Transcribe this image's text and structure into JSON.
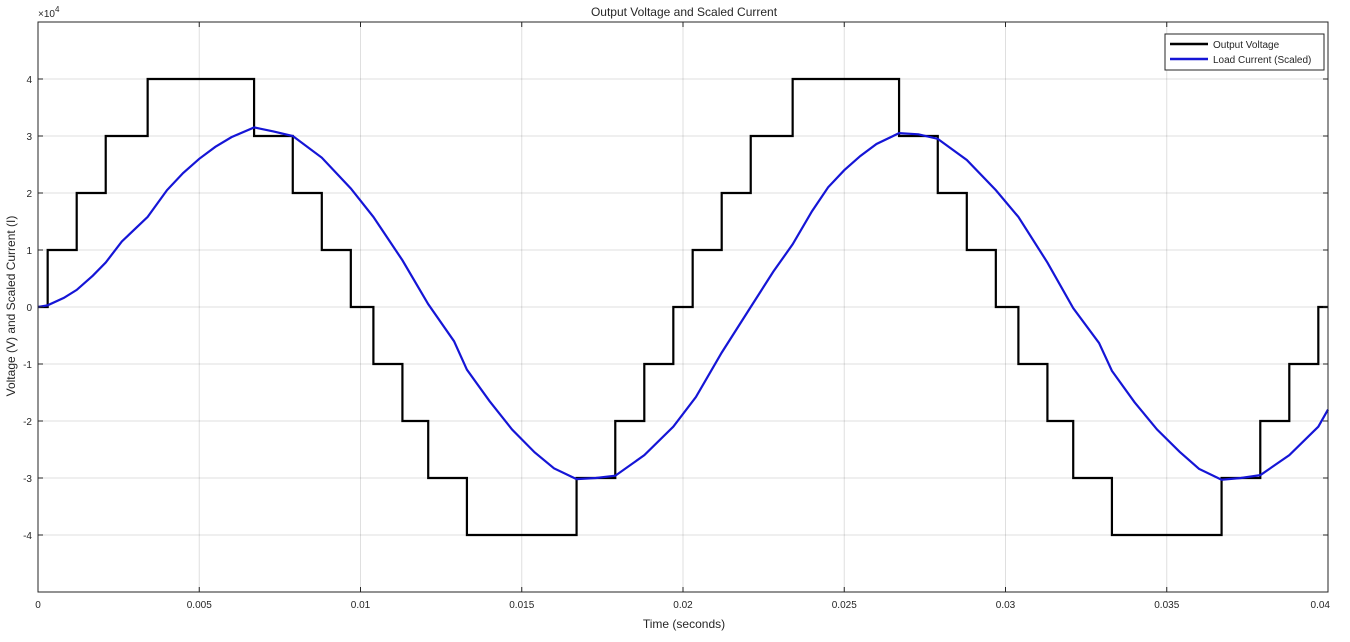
{
  "chart_data": {
    "type": "line",
    "title": "Output Voltage and Scaled Current",
    "xlabel": "Time (seconds)",
    "ylabel": "Voltage (V) and Scaled Current (I)",
    "y_exponent_label": "×10",
    "y_exponent_power": "4",
    "xlim": [
      0,
      0.04
    ],
    "ylim": [
      -50000,
      50000
    ],
    "grid": true,
    "legend_position": "top-right",
    "x_ticks": [
      0,
      0.005,
      0.01,
      0.015,
      0.02,
      0.025,
      0.03,
      0.035,
      0.04
    ],
    "x_tick_labels": [
      "0",
      "0.005",
      "0.01",
      "0.015",
      "0.02",
      "0.025",
      "0.03",
      "0.035",
      "0.04"
    ],
    "y_ticks": [
      -40000,
      -30000,
      -20000,
      -10000,
      0,
      10000,
      20000,
      30000,
      40000
    ],
    "y_tick_labels": [
      "-4",
      "-3",
      "-2",
      "-1",
      "0",
      "1",
      "2",
      "3",
      "4"
    ],
    "series": [
      {
        "name": "Output Voltage",
        "color": "#000000",
        "style": "step",
        "x": [
          0,
          0.0003,
          0.0003,
          0.0012,
          0.0012,
          0.0021,
          0.0021,
          0.0034,
          0.0034,
          0.0067,
          0.0067,
          0.0079,
          0.0079,
          0.0088,
          0.0088,
          0.0097,
          0.0097,
          0.0104,
          0.0104,
          0.0113,
          0.0113,
          0.0121,
          0.0121,
          0.0133,
          0.0133,
          0.0167,
          0.0167,
          0.0179,
          0.0179,
          0.0188,
          0.0188,
          0.0197,
          0.0197,
          0.0203,
          0.0203,
          0.0212,
          0.0212,
          0.0221,
          0.0221,
          0.0234,
          0.0234,
          0.0267,
          0.0267,
          0.0279,
          0.0279,
          0.0288,
          0.0288,
          0.0297,
          0.0297,
          0.0304,
          0.0304,
          0.0313,
          0.0313,
          0.0321,
          0.0321,
          0.0333,
          0.0333,
          0.0367,
          0.0367,
          0.0379,
          0.0379,
          0.0388,
          0.0388,
          0.0397,
          0.0397,
          0.04
        ],
        "y": [
          0,
          0,
          10000,
          10000,
          20000,
          20000,
          30000,
          30000,
          40000,
          40000,
          30000,
          30000,
          20000,
          20000,
          10000,
          10000,
          0,
          0,
          -10000,
          -10000,
          -20000,
          -20000,
          -30000,
          -30000,
          -40000,
          -40000,
          -30000,
          -30000,
          -20000,
          -20000,
          -10000,
          -10000,
          0,
          0,
          10000,
          10000,
          20000,
          20000,
          30000,
          30000,
          40000,
          40000,
          30000,
          30000,
          20000,
          20000,
          10000,
          10000,
          0,
          0,
          -10000,
          -10000,
          -20000,
          -20000,
          -30000,
          -30000,
          -40000,
          -40000,
          -30000,
          -30000,
          -20000,
          -20000,
          -10000,
          -10000,
          0,
          0
        ]
      },
      {
        "name": "Load Current (Scaled)",
        "color": "#1515d6",
        "style": "line",
        "x": [
          0,
          0.0003,
          0.0008,
          0.0012,
          0.0017,
          0.0021,
          0.0026,
          0.0034,
          0.004,
          0.0045,
          0.005,
          0.0055,
          0.006,
          0.0067,
          0.0073,
          0.0079,
          0.0088,
          0.0097,
          0.0104,
          0.0113,
          0.0121,
          0.0129,
          0.0133,
          0.014,
          0.0147,
          0.0154,
          0.016,
          0.0167,
          0.0173,
          0.0179,
          0.0188,
          0.0197,
          0.0204,
          0.0212,
          0.0221,
          0.0228,
          0.0234,
          0.024,
          0.0245,
          0.025,
          0.0255,
          0.026,
          0.0267,
          0.0273,
          0.0279,
          0.0288,
          0.0297,
          0.0304,
          0.0313,
          0.0321,
          0.0329,
          0.0333,
          0.034,
          0.0347,
          0.0354,
          0.036,
          0.0367,
          0.0373,
          0.0379,
          0.0388,
          0.0397,
          0.04
        ],
        "y": [
          0,
          300,
          1600,
          3000,
          5500,
          7800,
          11500,
          15800,
          20500,
          23500,
          26000,
          28100,
          29800,
          31500,
          30800,
          30000,
          26200,
          20800,
          15800,
          8200,
          500,
          -6000,
          -11000,
          -16500,
          -21500,
          -25500,
          -28300,
          -30200,
          -30000,
          -29600,
          -26000,
          -21000,
          -15800,
          -8000,
          0,
          6200,
          11000,
          16800,
          21000,
          24000,
          26500,
          28600,
          30500,
          30300,
          29500,
          25800,
          20500,
          15800,
          7800,
          -200,
          -6300,
          -11200,
          -16700,
          -21500,
          -25400,
          -28400,
          -30300,
          -30000,
          -29500,
          -26000,
          -21000,
          -18000
        ]
      }
    ]
  }
}
